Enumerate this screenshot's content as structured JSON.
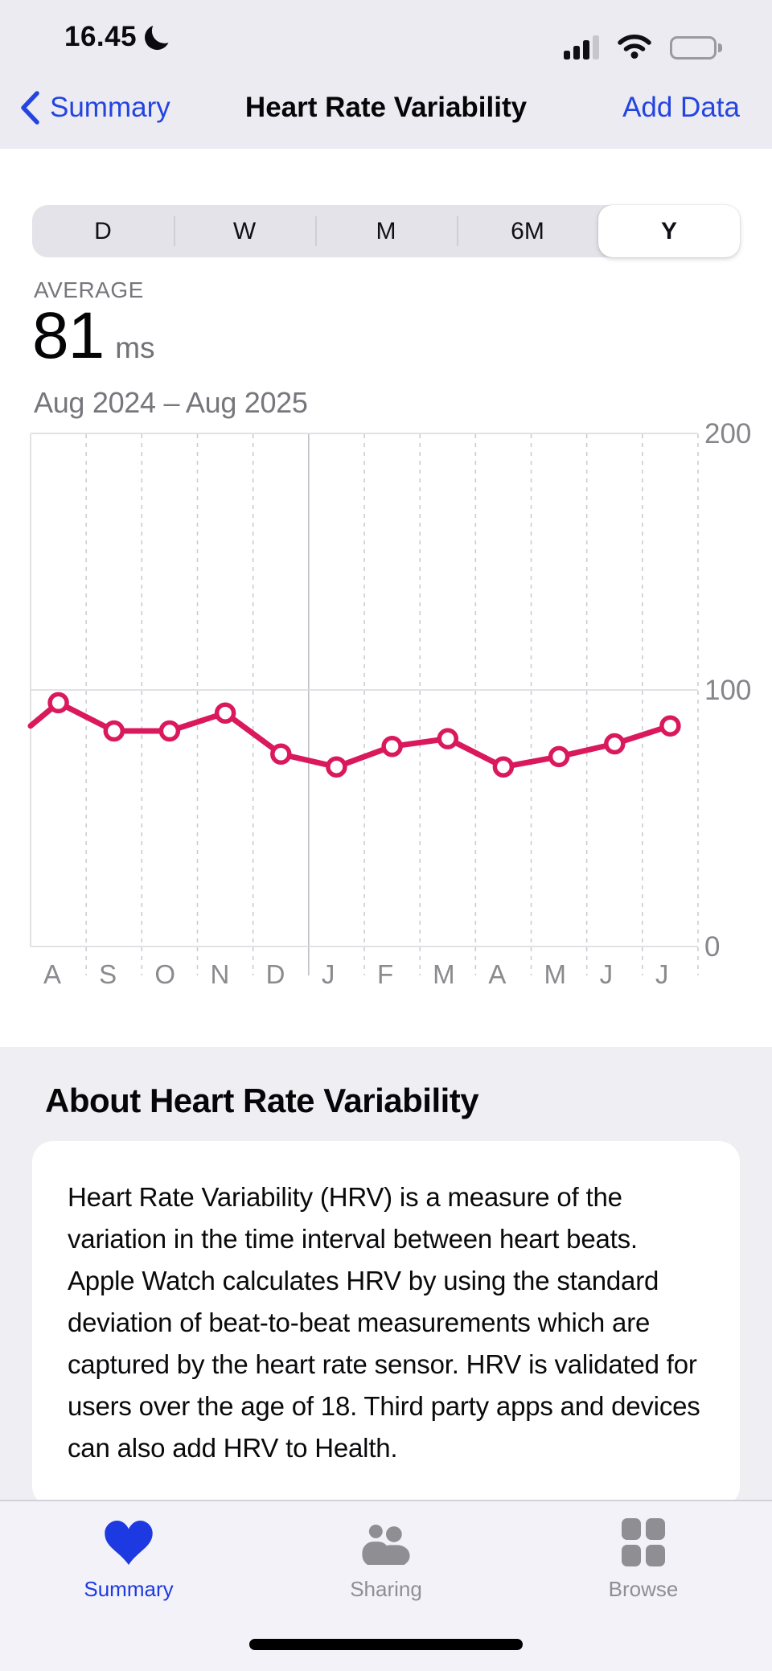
{
  "status_bar": {
    "time": "16.45",
    "icons": [
      "moon-icon",
      "cellular-signal-icon",
      "wifi-icon",
      "battery-icon"
    ]
  },
  "nav": {
    "back_label": "Summary",
    "title": "Heart Rate Variability",
    "add_data_label": "Add Data"
  },
  "segmented": {
    "options": [
      "D",
      "W",
      "M",
      "6M",
      "Y"
    ],
    "selected": "Y"
  },
  "summary": {
    "label": "AVERAGE",
    "value": "81",
    "unit": "ms",
    "range": "Aug 2024 – Aug 2025"
  },
  "chart_data": {
    "type": "line",
    "title": "Heart Rate Variability, monthly average (ms)",
    "x_labels": [
      "A",
      "S",
      "O",
      "N",
      "D",
      "J",
      "F",
      "M",
      "A",
      "M",
      "J",
      "J"
    ],
    "months": [
      "Aug 2024",
      "Sep 2024",
      "Oct 2024",
      "Nov 2024",
      "Dec 2024",
      "Jan 2025",
      "Feb 2025",
      "Mar 2025",
      "Apr 2025",
      "May 2025",
      "Jun 2025",
      "Jul 2025"
    ],
    "values": [
      95,
      84,
      84,
      91,
      75,
      70,
      78,
      81,
      70,
      74,
      79,
      86
    ],
    "lead_in_edge_value": 86,
    "unit": "ms",
    "y_ticks": [
      0,
      100,
      200
    ],
    "ylim": [
      0,
      200
    ],
    "grid": true,
    "year_boundary_index": 5,
    "legend": "none",
    "line_color": "#da195c",
    "marker": "open-circle"
  },
  "about": {
    "heading": "About Heart Rate Variability",
    "body": "Heart Rate Variability (HRV) is a measure of the variation in the time interval between heart beats. Apple Watch calculates HRV by using the standard deviation of beat-to-beat measurements which are captured by the heart rate sensor. HRV is validated for users over the age of 18. Third party apps and devices can also add HRV to Health."
  },
  "tab_bar": {
    "tabs": [
      {
        "label": "Summary",
        "icon": "heart-icon",
        "active": true
      },
      {
        "label": "Sharing",
        "icon": "people-icon",
        "active": false
      },
      {
        "label": "Browse",
        "icon": "grid-icon",
        "active": false
      }
    ],
    "active_color": "#1d3ae2",
    "inactive_color": "#8e8e93"
  }
}
